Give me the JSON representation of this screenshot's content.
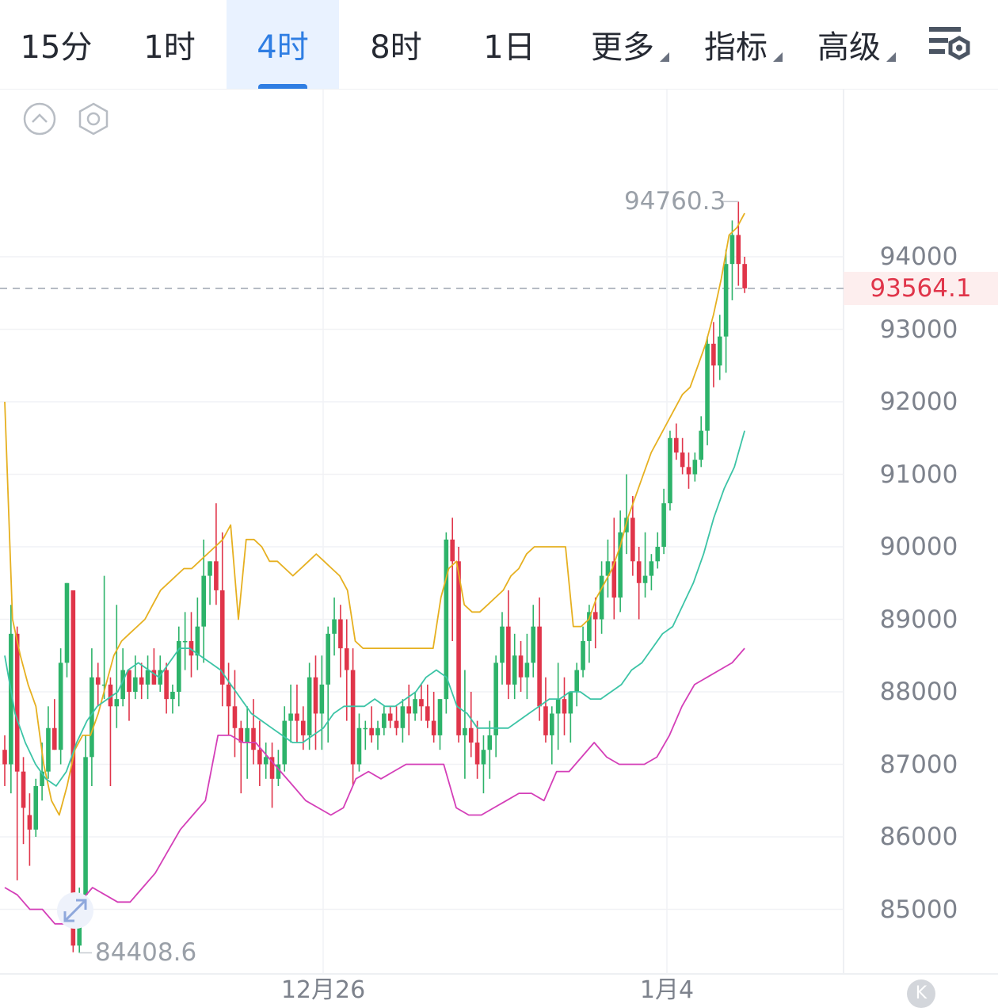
{
  "tabs": [
    {
      "label": "15分",
      "active": false,
      "dropdown": false
    },
    {
      "label": "1时",
      "active": false,
      "dropdown": false
    },
    {
      "label": "4时",
      "active": true,
      "dropdown": false
    },
    {
      "label": "8时",
      "active": false,
      "dropdown": false
    },
    {
      "label": "1日",
      "active": false,
      "dropdown": false
    },
    {
      "label": "更多",
      "active": false,
      "dropdown": true
    },
    {
      "label": "指标",
      "active": false,
      "dropdown": true
    },
    {
      "label": "高级",
      "active": false,
      "dropdown": true
    }
  ],
  "icons": {
    "settings": "chart-settings-icon",
    "collapse": "collapse-up-icon",
    "indicator_settings": "hexagon-settings-icon",
    "expand": "expand-arrows-icon",
    "k_button": "K"
  },
  "colors": {
    "accent": "#2f7ee3",
    "up": "#2db36a",
    "down": "#e0354a",
    "ma_yellow": "#e6b020",
    "ma_teal": "#3cc4a6",
    "ma_magenta": "#d43fb8"
  },
  "chart_data": {
    "type": "candlestick",
    "y_axis_ticks": [
      "94000",
      "93000",
      "92000",
      "91000",
      "90000",
      "89000",
      "88000",
      "87000",
      "86000",
      "85000"
    ],
    "ylim": [
      84100,
      95500
    ],
    "x_axis_ticks": [
      "12月26",
      "1月4"
    ],
    "current_price": "93564.1",
    "high_label": "94760.3",
    "low_label": "84408.6",
    "grid": true,
    "candles": [
      [
        87200,
        87400,
        86700,
        87000
      ],
      [
        87000,
        89200,
        86600,
        88800
      ],
      [
        88800,
        88900,
        85400,
        86900
      ],
      [
        86900,
        87100,
        85900,
        86400
      ],
      [
        86300,
        86600,
        85600,
        86100
      ],
      [
        86100,
        86800,
        86000,
        86700
      ],
      [
        86700,
        87300,
        86500,
        86900
      ],
      [
        86900,
        87800,
        86800,
        87500
      ],
      [
        87500,
        87900,
        87200,
        87200
      ],
      [
        87200,
        88600,
        87000,
        88400
      ],
      [
        88400,
        89500,
        88200,
        89500
      ],
      [
        89400,
        89300,
        84408.6,
        84500
      ],
      [
        84500,
        85300,
        84400,
        85200
      ],
      [
        85200,
        87400,
        85000,
        87100
      ],
      [
        87100,
        88600,
        86700,
        88200
      ],
      [
        88200,
        88400,
        87800,
        88100
      ],
      [
        88100,
        89600,
        87900,
        88100
      ],
      [
        88100,
        88200,
        86700,
        87800
      ],
      [
        87800,
        89200,
        87500,
        87900
      ],
      [
        87900,
        88600,
        87800,
        88300
      ],
      [
        88300,
        88300,
        87600,
        88000
      ],
      [
        88000,
        88500,
        87900,
        88200
      ],
      [
        88200,
        88400,
        87900,
        88100
      ],
      [
        88100,
        88500,
        87900,
        88300
      ],
      [
        88300,
        88600,
        88100,
        88100
      ],
      [
        88100,
        88500,
        88000,
        88300
      ],
      [
        88300,
        88400,
        87700,
        87900
      ],
      [
        87900,
        88100,
        87700,
        88000
      ],
      [
        88000,
        88900,
        87800,
        88700
      ],
      [
        88700,
        89100,
        88300,
        88700
      ],
      [
        88700,
        89100,
        88200,
        88500
      ],
      [
        88500,
        89300,
        88300,
        88900
      ],
      [
        88900,
        90100,
        88400,
        89600
      ],
      [
        89600,
        89800,
        89200,
        89800
      ],
      [
        89800,
        90600,
        89200,
        89400
      ],
      [
        89400,
        90200,
        87800,
        88100
      ],
      [
        88100,
        88400,
        87400,
        87800
      ],
      [
        87800,
        88300,
        87100,
        87500
      ],
      [
        87500,
        87600,
        86600,
        87300
      ],
      [
        87300,
        87800,
        86800,
        87500
      ],
      [
        87500,
        87900,
        87000,
        87200
      ],
      [
        87200,
        87600,
        86700,
        87000
      ],
      [
        87000,
        87300,
        86800,
        87100
      ],
      [
        87100,
        87300,
        86400,
        86800
      ],
      [
        86800,
        87200,
        86700,
        87000
      ],
      [
        87000,
        87800,
        86900,
        87600
      ],
      [
        87600,
        88100,
        87300,
        87700
      ],
      [
        87700,
        88100,
        87300,
        87600
      ],
      [
        87600,
        87800,
        87200,
        87400
      ],
      [
        87400,
        88400,
        87200,
        88200
      ],
      [
        88200,
        88500,
        87200,
        87700
      ],
      [
        87700,
        88500,
        87200,
        88100
      ],
      [
        88100,
        88900,
        87300,
        88800
      ],
      [
        88800,
        89300,
        88500,
        89000
      ],
      [
        89000,
        89200,
        88200,
        88600
      ],
      [
        88600,
        89000,
        87600,
        88300
      ],
      [
        88300,
        88600,
        86700,
        87000
      ],
      [
        87000,
        87700,
        86900,
        87500
      ],
      [
        87500,
        87600,
        87200,
        87500
      ],
      [
        87500,
        87800,
        87300,
        87400
      ],
      [
        87400,
        87600,
        87200,
        87500
      ],
      [
        87500,
        87800,
        87400,
        87700
      ],
      [
        87700,
        87800,
        87500,
        87600
      ],
      [
        87600,
        87800,
        87400,
        87500
      ],
      [
        87500,
        87900,
        87300,
        87800
      ],
      [
        87800,
        88100,
        87400,
        87700
      ],
      [
        87700,
        88000,
        87600,
        87900
      ],
      [
        87900,
        88100,
        87600,
        87800
      ],
      [
        87800,
        88100,
        87500,
        87600
      ],
      [
        87600,
        88000,
        87300,
        87400
      ],
      [
        87400,
        87900,
        87200,
        87900
      ],
      [
        87900,
        90200,
        87700,
        90100
      ],
      [
        90100,
        90400,
        88700,
        89800
      ],
      [
        89800,
        90000,
        87300,
        87400
      ],
      [
        87400,
        88300,
        86800,
        87500
      ],
      [
        87500,
        88000,
        87100,
        87300
      ],
      [
        87300,
        87600,
        86800,
        87000
      ],
      [
        87000,
        87400,
        86600,
        87200
      ],
      [
        87200,
        87600,
        86800,
        87400
      ],
      [
        87400,
        88500,
        87100,
        88400
      ],
      [
        88400,
        89100,
        88100,
        88900
      ],
      [
        88900,
        89400,
        87900,
        88100
      ],
      [
        88100,
        88800,
        87900,
        88500
      ],
      [
        88500,
        88700,
        88000,
        88200
      ],
      [
        88200,
        88800,
        87900,
        88400
      ],
      [
        88400,
        89200,
        88200,
        88900
      ],
      [
        88900,
        89300,
        87600,
        87800
      ],
      [
        87800,
        88200,
        87300,
        87400
      ],
      [
        87400,
        87800,
        87000,
        87700
      ],
      [
        87700,
        88400,
        87200,
        87900
      ],
      [
        87900,
        88200,
        87400,
        87700
      ],
      [
        87700,
        88000,
        87300,
        88000
      ],
      [
        88000,
        88400,
        87800,
        88300
      ],
      [
        88300,
        88900,
        88200,
        88700
      ],
      [
        88700,
        89200,
        88400,
        89100
      ],
      [
        89100,
        89300,
        88600,
        89000
      ],
      [
        89000,
        89800,
        88800,
        89600
      ],
      [
        89600,
        90100,
        89300,
        89800
      ],
      [
        89800,
        90400,
        89000,
        89300
      ],
      [
        89300,
        90500,
        89100,
        90200
      ],
      [
        90200,
        91000,
        89900,
        90400
      ],
      [
        90400,
        90700,
        89600,
        89800
      ],
      [
        89800,
        90000,
        89000,
        89500
      ],
      [
        89500,
        90200,
        89300,
        89600
      ],
      [
        89600,
        89900,
        89400,
        89800
      ],
      [
        89800,
        90200,
        89700,
        90000
      ],
      [
        90000,
        90800,
        89900,
        90600
      ],
      [
        90600,
        91600,
        90500,
        91500
      ],
      [
        91500,
        91700,
        91200,
        91300
      ],
      [
        91300,
        91500,
        91000,
        91100
      ],
      [
        91100,
        91300,
        90800,
        91000
      ],
      [
        91000,
        91300,
        90900,
        91200
      ],
      [
        91200,
        91800,
        91100,
        91600
      ],
      [
        91600,
        92900,
        91400,
        92800
      ],
      [
        92800,
        93100,
        92200,
        92500
      ],
      [
        92500,
        93200,
        92300,
        92900
      ],
      [
        92900,
        94100,
        92400,
        93900
      ],
      [
        93900,
        94500,
        93400,
        94300
      ],
      [
        94300,
        94760.3,
        93600,
        93900
      ],
      [
        93900,
        94000,
        93500,
        93564.1
      ]
    ],
    "series": [
      {
        "values": [
          92000,
          89000,
          88500,
          88100,
          87800,
          87000,
          86500,
          86300,
          86700,
          87200,
          87400,
          87400,
          87700,
          88100,
          88500,
          88700,
          88800,
          88900,
          89000,
          89200,
          89400,
          89500,
          89600,
          89700,
          89700,
          89800,
          89900,
          90000,
          90100,
          90300,
          89000,
          90100,
          90100,
          90000,
          89800,
          89800,
          89700,
          89600,
          89700,
          89800,
          89900,
          89800,
          89700,
          89600,
          89400,
          88700,
          88600,
          88600,
          88600,
          88600,
          88600,
          88600,
          88600,
          88600,
          88600,
          88600,
          89300,
          89700,
          89800,
          89200,
          89100,
          89100,
          89200,
          89300,
          89400,
          89600,
          89700,
          89900,
          90000,
          90000,
          90000,
          90000,
          90000,
          88900,
          88900,
          89000,
          89300,
          89500,
          89700,
          90000,
          90400,
          90700,
          91000,
          91300,
          91500,
          91700,
          91900,
          92100,
          92200,
          92500,
          92800,
          93200,
          93700,
          94300,
          94400,
          94600
        ]
      },
      {
        "values": [
          88500,
          87700,
          87300,
          87000,
          86800,
          86700,
          86900,
          87300,
          87600,
          87800,
          87900,
          88000,
          88300,
          88400,
          88300,
          88200,
          88400,
          88600,
          88600,
          88500,
          88400,
          88300,
          88100,
          87900,
          87700,
          87600,
          87500,
          87400,
          87300,
          87300,
          87400,
          87500,
          87700,
          87800,
          87800,
          87800,
          87900,
          87800,
          87800,
          87900,
          88000,
          88200,
          88300,
          88200,
          87800,
          87700,
          87500,
          87500,
          87500,
          87500,
          87600,
          87700,
          87800,
          87900,
          87900,
          88000,
          88000,
          87900,
          87900,
          88000,
          88100,
          88300,
          88400,
          88600,
          88800,
          88900,
          89200,
          89500,
          89900,
          90400,
          90800,
          91100,
          91600
        ]
      },
      {
        "values": [
          85300,
          85200,
          85000,
          85000,
          84800,
          84800,
          85100,
          85300,
          85200,
          85100,
          85100,
          85300,
          85500,
          85800,
          86100,
          86300,
          86500,
          87400,
          87400,
          87300,
          87300,
          87100,
          86900,
          86700,
          86500,
          86400,
          86300,
          86400,
          86800,
          86900,
          86800,
          86900,
          87000,
          87000,
          87000,
          87000,
          86400,
          86300,
          86300,
          86400,
          86500,
          86600,
          86600,
          86500,
          86900,
          86900,
          87100,
          87300,
          87100,
          87000,
          87000,
          87000,
          87100,
          87400,
          87800,
          88100,
          88200,
          88300,
          88400,
          88600
        ]
      }
    ]
  }
}
